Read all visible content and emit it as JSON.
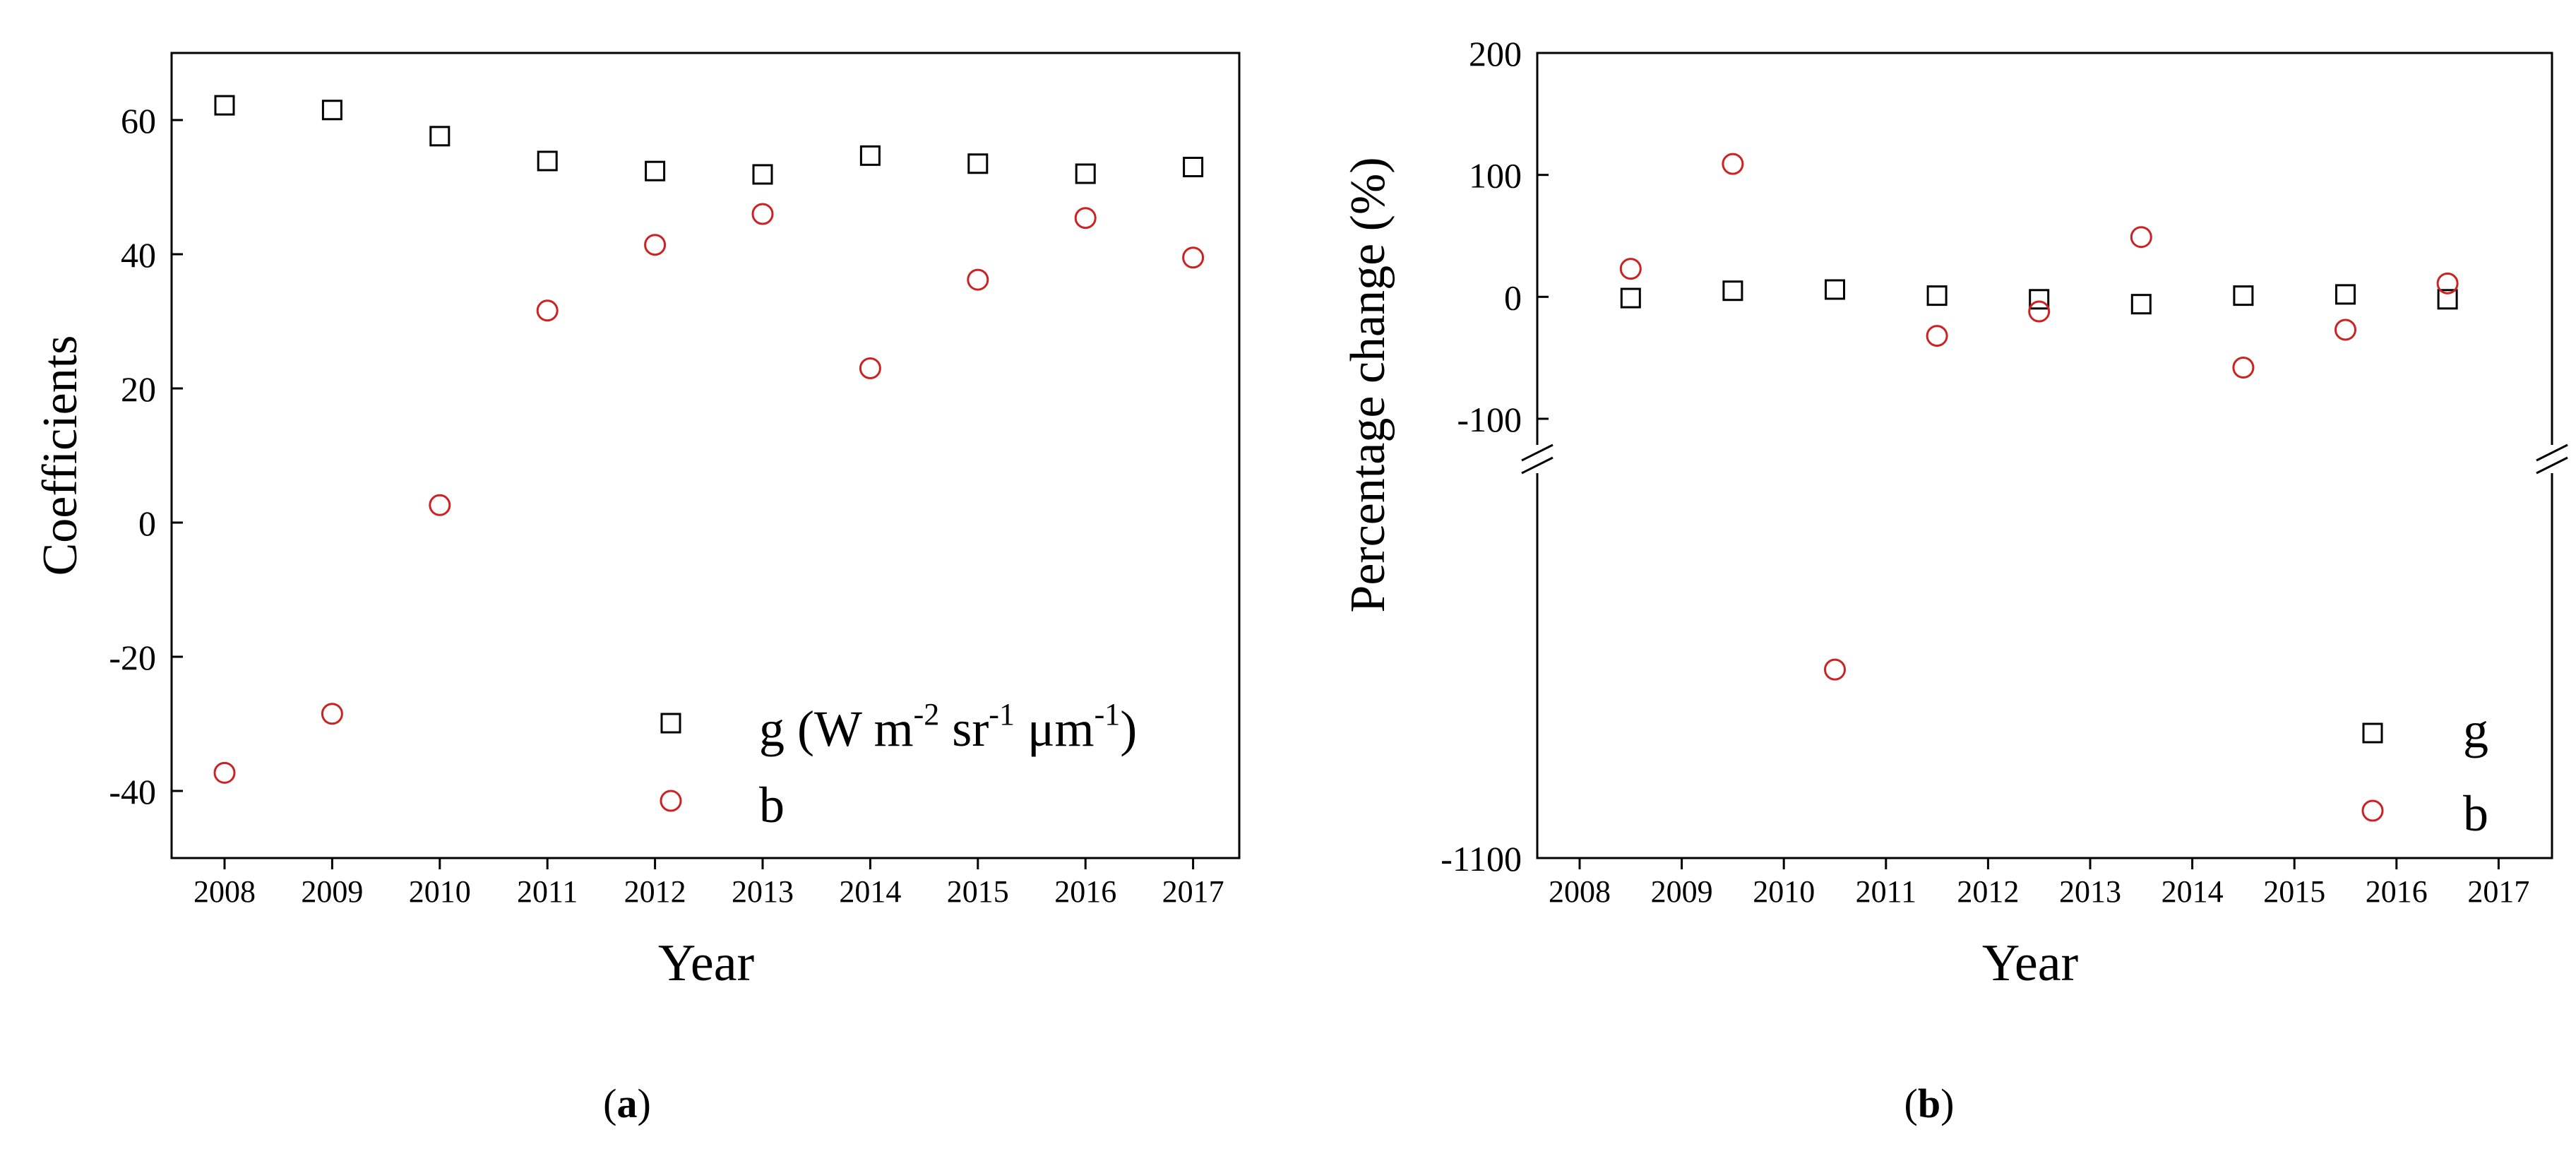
{
  "chart_data": [
    {
      "type": "scatter",
      "panel_label": "a",
      "xlabel": "Year",
      "ylabel": "Coefficients",
      "categories": [
        "2008",
        "2009",
        "2010",
        "2011",
        "2012",
        "2013",
        "2014",
        "2015",
        "2016",
        "2017"
      ],
      "ylim": [
        -50,
        70
      ],
      "yticks": [
        {
          "v": 60,
          "label": "60"
        },
        {
          "v": 40,
          "label": "40"
        },
        {
          "v": 20,
          "label": "20"
        },
        {
          "v": 0,
          "label": "0"
        },
        {
          "v": -20,
          "label": "-20"
        },
        {
          "v": -40,
          "label": "-40"
        }
      ],
      "legend": {
        "position": "lower-right",
        "g_parts": [
          "g (W m",
          "-2",
          " sr",
          "-1",
          " μm",
          "-1",
          ")"
        ],
        "b_label": "b"
      },
      "series": [
        {
          "name": "g",
          "marker": "square",
          "color": "#000000",
          "values": [
            62.2,
            61.5,
            57.6,
            53.9,
            52.4,
            51.9,
            54.7,
            53.5,
            52.0,
            53.0
          ]
        },
        {
          "name": "b",
          "marker": "circle",
          "color": "#cc2222",
          "values": [
            -37.3,
            -28.5,
            2.6,
            31.6,
            41.4,
            46.0,
            23.0,
            36.2,
            45.4,
            39.5
          ]
        }
      ]
    },
    {
      "type": "scatter",
      "panel_label": "b",
      "xlabel": "Year",
      "ylabel": "Percentage change (%)",
      "categories": [
        "2008",
        "2009",
        "2010",
        "2011",
        "2012",
        "2013",
        "2014",
        "2015",
        "2016",
        "2017"
      ],
      "x_note": "points lie midway between consecutive years",
      "axis_break": {
        "upper_range": [
          -100,
          200
        ],
        "lower_range": [
          -1100,
          -100
        ]
      },
      "yticks": [
        {
          "v": 200,
          "label": "200"
        },
        {
          "v": 100,
          "label": "100"
        },
        {
          "v": 0,
          "label": "0"
        },
        {
          "v": -100,
          "label": "-100"
        },
        {
          "v": -1100,
          "label": "-1100"
        }
      ],
      "legend": {
        "position": "lower-right",
        "g_label": "g",
        "b_label": "b"
      },
      "series": [
        {
          "name": "g",
          "marker": "square",
          "color": "#000000",
          "x": [
            2008.5,
            2009.5,
            2010.5,
            2011.5,
            2012.5,
            2013.5,
            2014.5,
            2015.5,
            2016.5
          ],
          "values": [
            -1,
            5,
            6,
            1,
            -2,
            -6,
            1,
            2,
            -2
          ]
        },
        {
          "name": "b",
          "marker": "circle",
          "color": "#cc2222",
          "x": [
            2008.5,
            2009.5,
            2010.5,
            2011.5,
            2012.5,
            2013.5,
            2014.5,
            2015.5,
            2016.5
          ],
          "values": [
            23,
            109,
            -620,
            -32,
            -12,
            49,
            -58,
            -27,
            11
          ]
        }
      ]
    }
  ]
}
